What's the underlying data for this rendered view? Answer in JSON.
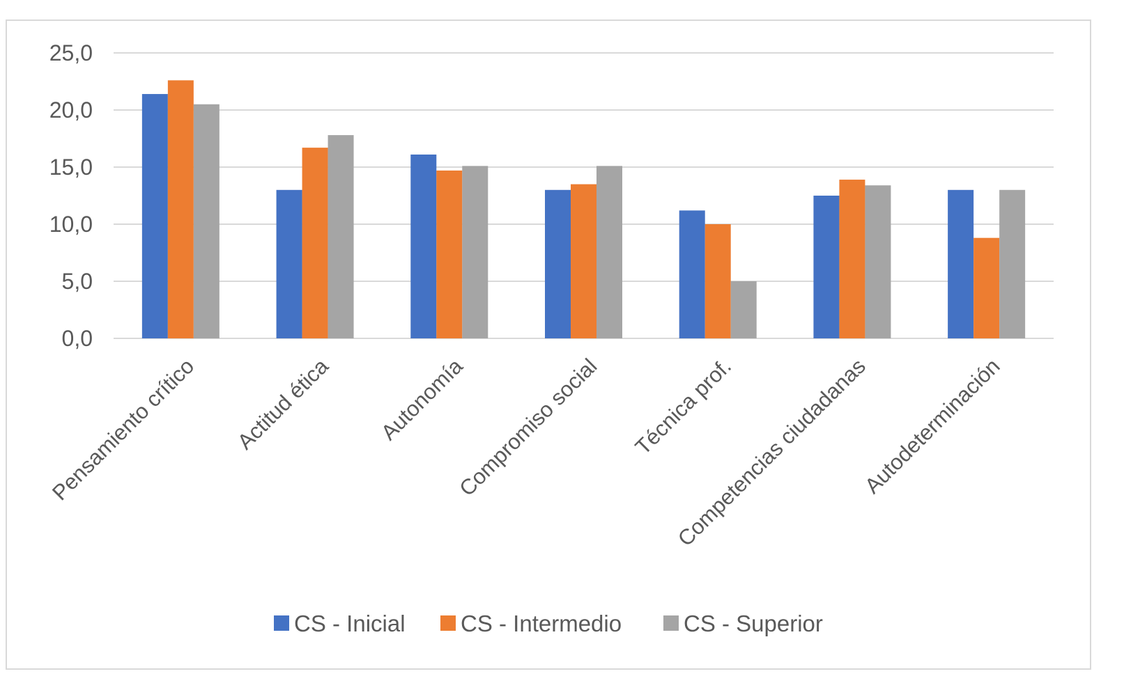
{
  "chart_data": {
    "type": "bar",
    "categories": [
      "Pensamiento crítico",
      "Actitud ética",
      "Autonomía",
      "Compromiso social",
      "Técnica prof.",
      "Competencias ciudadanas",
      "Autodeterminación"
    ],
    "series": [
      {
        "name": "CS - Inicial",
        "color": "#4472c4",
        "values": [
          21.4,
          13.0,
          16.1,
          13.0,
          11.2,
          12.5,
          13.0
        ]
      },
      {
        "name": "CS - Intermedio",
        "color": "#ed7d31",
        "values": [
          22.6,
          16.7,
          14.7,
          13.5,
          10.0,
          13.9,
          8.8
        ]
      },
      {
        "name": "CS - Superior",
        "color": "#a5a5a5",
        "values": [
          20.5,
          17.8,
          15.1,
          15.1,
          5.0,
          13.4,
          13.0
        ]
      }
    ],
    "yticks": [
      "0,0",
      "5,0",
      "10,0",
      "15,0",
      "20,0",
      "25,0"
    ],
    "ylim": [
      0,
      25
    ],
    "grid": true,
    "legend": "bottom"
  }
}
